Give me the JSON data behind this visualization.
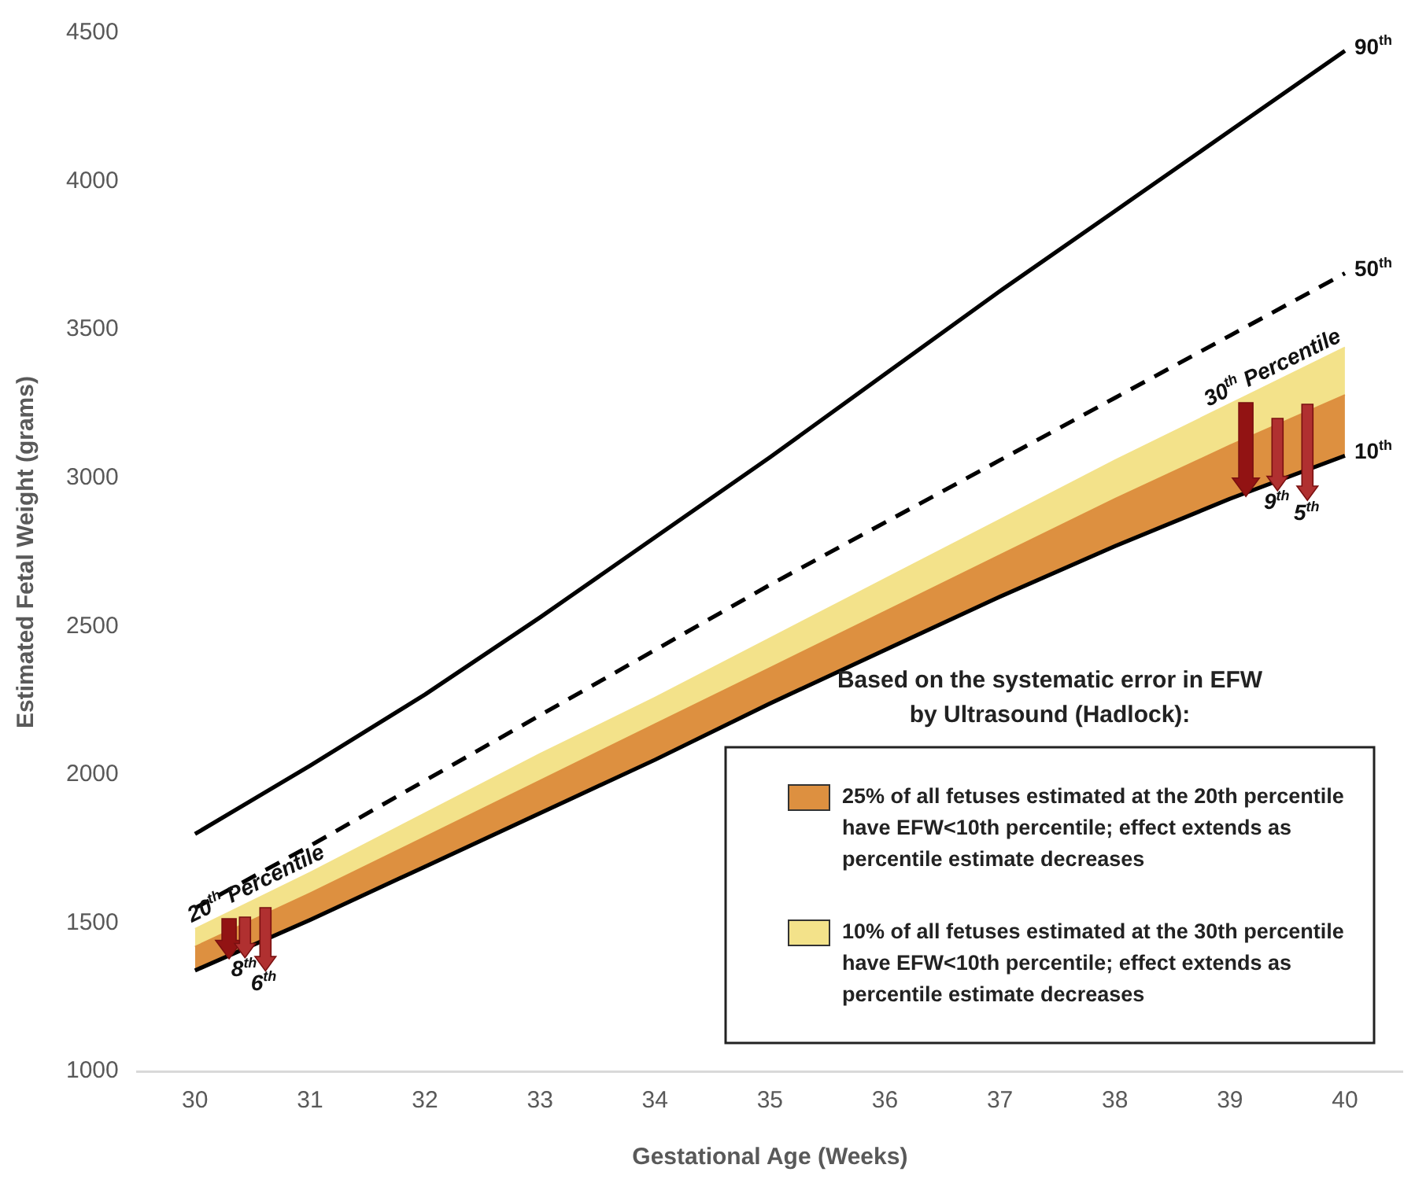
{
  "chart_data": {
    "type": "line",
    "xlabel": "Gestational Age (Weeks)",
    "ylabel": "Estimated Fetal Weight (grams)",
    "x": [
      30,
      31,
      32,
      33,
      34,
      35,
      36,
      37,
      38,
      39,
      40
    ],
    "series": [
      {
        "type": "line",
        "name": "10$^{th}$",
        "color": "#000000",
        "line_style": "solid",
        "values": [
          1340,
          1510,
          1690,
          1870,
          2050,
          2240,
          2420,
          2600,
          2770,
          2930,
          3075
        ]
      },
      {
        "type": "area",
        "name": "25% of all fetuses estimated at the 20th percentile have EFW<10th percentile; effect extends as percentile estimate decreases",
        "color": "#dd9040",
        "values": [
          1420,
          1600,
          1790,
          1980,
          2170,
          2360,
          2550,
          2740,
          2930,
          3110,
          3280
        ]
      },
      {
        "type": "area",
        "name": "10% of all fetuses estimated at the 30th percentile have EFW<10th percentile; effect extends as percentile estimate decreases",
        "color": "#f3e28a",
        "values": [
          1480,
          1670,
          1870,
          2070,
          2260,
          2460,
          2660,
          2860,
          3060,
          3250,
          3440
        ]
      },
      {
        "type": "line",
        "name": "50$^{th}$",
        "color": "#000000",
        "line_style": "dashed",
        "values": [
          1550,
          1760,
          1980,
          2200,
          2420,
          2640,
          2850,
          3060,
          3270,
          3480,
          3690
        ]
      },
      {
        "type": "line",
        "name": "90$^{th}$",
        "color": "#000000",
        "line_style": "solid",
        "values": [
          1800,
          2030,
          2270,
          2530,
          2800,
          3070,
          3350,
          3630,
          3900,
          4170,
          4440
        ]
      }
    ],
    "xlim": [
      29.5,
      40.5
    ],
    "xticks": [
      30,
      31,
      32,
      33,
      34,
      35,
      36,
      37,
      38,
      39,
      40
    ],
    "ylim": [
      1000,
      4500
    ],
    "yticks": [
      1000,
      1500,
      2000,
      2500,
      3000,
      3500,
      4000,
      4500
    ],
    "grid": false,
    "marker": "none",
    "legend": "bottom right",
    "legend_title": "Based on the systematic error in EFW by Ultrasound (Hadlock):",
    "annotations": [
      {
        "text": "20$^{th}$ Percentile",
        "x": 30.29,
        "y": 1535
      },
      {
        "text": "8$^{th}$",
        "x": 30.44,
        "y": 1415
      },
      {
        "text": "6$^{th}$",
        "x": 30.61,
        "y": 1444
      },
      {
        "text": "30$^{th}$ Percentile",
        "x": 39.14,
        "y": 3277
      },
      {
        "text": "9$^{th}$",
        "x": 39.42,
        "y": 2991
      },
      {
        "text": "5$^{th}$",
        "x": 39.68,
        "y": 3029
      }
    ]
  }
}
